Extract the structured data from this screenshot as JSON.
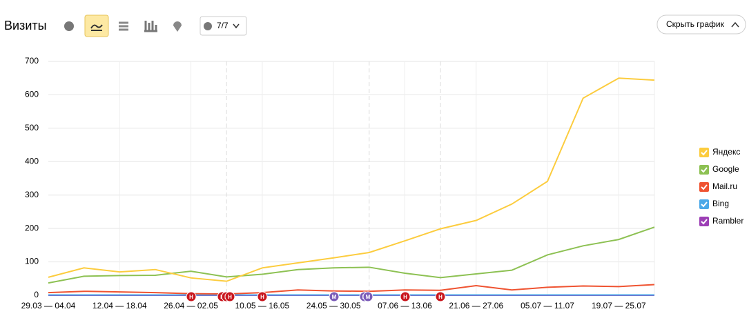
{
  "header": {
    "title": "Визиты",
    "comments": "7/7",
    "hide_button": "Скрыть график"
  },
  "annotation_markers": [
    "Н",
    "Н",
    "Н",
    "Н",
    "Н",
    "М",
    "М",
    "М",
    "Н",
    "Н"
  ],
  "chart_data": {
    "type": "line",
    "categories": [
      "29.03 — 04.04",
      null,
      "12.04 — 18.04",
      null,
      "26.04 — 02.05",
      null,
      "10.05 — 16.05",
      null,
      "24.05 — 30.05",
      null,
      "07.06 — 13.06",
      null,
      "21.06 — 27.06",
      null,
      "05.07 — 11.07",
      null,
      "19.07 — 25.07",
      null
    ],
    "series": [
      {
        "name": "Яндекс",
        "color": "#fccc3e",
        "values": [
          54,
          82,
          70,
          77,
          52,
          42,
          82,
          97,
          112,
          128,
          163,
          199,
          224,
          273,
          341,
          590,
          650,
          644
        ]
      },
      {
        "name": "Google",
        "color": "#8dc153",
        "values": [
          37,
          57,
          59,
          60,
          72,
          55,
          63,
          77,
          82,
          84,
          66,
          53,
          64,
          75,
          121,
          148,
          167,
          204
        ]
      },
      {
        "name": "Mail.ru",
        "color": "#ef5331",
        "values": [
          8,
          12,
          10,
          8,
          5,
          4,
          8,
          16,
          13,
          12,
          16,
          15,
          29,
          16,
          24,
          28,
          26,
          32
        ]
      },
      {
        "name": "Bing",
        "color": "#4ba8e8",
        "values": [
          1,
          1,
          1,
          1,
          1,
          1,
          1,
          1,
          1,
          1,
          1,
          1,
          1,
          1,
          1,
          1,
          1,
          1
        ]
      },
      {
        "name": "Rambler",
        "color": "#9c3fb5",
        "values": [
          0,
          0,
          0,
          0,
          0,
          0,
          0,
          0,
          0,
          0,
          0,
          0,
          0,
          0,
          0,
          0,
          0,
          0
        ]
      }
    ],
    "ylim": [
      0,
      700
    ],
    "yticks": [
      0,
      100,
      200,
      300,
      400,
      500,
      600,
      700
    ],
    "grid": true
  }
}
